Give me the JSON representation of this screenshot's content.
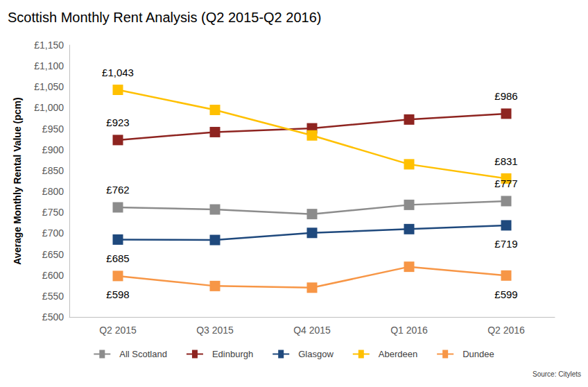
{
  "chart_data": {
    "type": "line",
    "title": "Scottish Monthly Rent Analysis (Q2 2015-Q2 2016)",
    "y_label": "Average Monthly Rental Value (pcm)",
    "annotations": [
      "Source: Citylets"
    ],
    "categories": [
      "Q2 2015",
      "Q3 2015",
      "Q4 2015",
      "Q1 2016",
      "Q2 2016"
    ],
    "series": [
      {
        "name": "All Scotland",
        "color": "#8c8c8c",
        "values": [
          762,
          757,
          746,
          768,
          777
        ],
        "value_labels": [
          "£762",
          null,
          null,
          null,
          "£777"
        ]
      },
      {
        "name": "Edinburgh",
        "color": "#8e2420",
        "values": [
          923,
          942,
          951,
          972,
          986
        ],
        "value_labels": [
          "£923",
          null,
          null,
          null,
          "£986"
        ]
      },
      {
        "name": "Glasgow",
        "color": "#1f497d",
        "values": [
          685,
          684,
          701,
          710,
          719
        ],
        "value_labels": [
          "£685",
          null,
          null,
          null,
          "£719"
        ]
      },
      {
        "name": "Aberdeen",
        "color": "#ffc000",
        "values": [
          1043,
          995,
          934,
          865,
          831
        ],
        "value_labels": [
          "£1,043",
          null,
          null,
          null,
          "£831"
        ]
      },
      {
        "name": "Dundee",
        "color": "#f79646",
        "values": [
          598,
          574,
          570,
          620,
          599
        ],
        "value_labels": [
          "£598",
          null,
          null,
          null,
          "£599"
        ]
      }
    ],
    "ylim": [
      500,
      1150
    ],
    "yticks": [
      {
        "value": 500,
        "label": "£500"
      },
      {
        "value": 550,
        "label": "£550"
      },
      {
        "value": 600,
        "label": "£600"
      },
      {
        "value": 650,
        "label": "£650"
      },
      {
        "value": 700,
        "label": "£700"
      },
      {
        "value": 750,
        "label": "£750"
      },
      {
        "value": 800,
        "label": "£800"
      },
      {
        "value": 850,
        "label": "£850"
      },
      {
        "value": 900,
        "label": "£900"
      },
      {
        "value": 950,
        "label": "£950"
      },
      {
        "value": 1000,
        "label": "£1,000"
      },
      {
        "value": 1050,
        "label": "£1,050"
      },
      {
        "value": 1100,
        "label": "£1,100"
      },
      {
        "value": 1150,
        "label": "£1,150"
      }
    ],
    "grid": false,
    "legend": "bottom",
    "marker": "square",
    "data_labels": true
  }
}
